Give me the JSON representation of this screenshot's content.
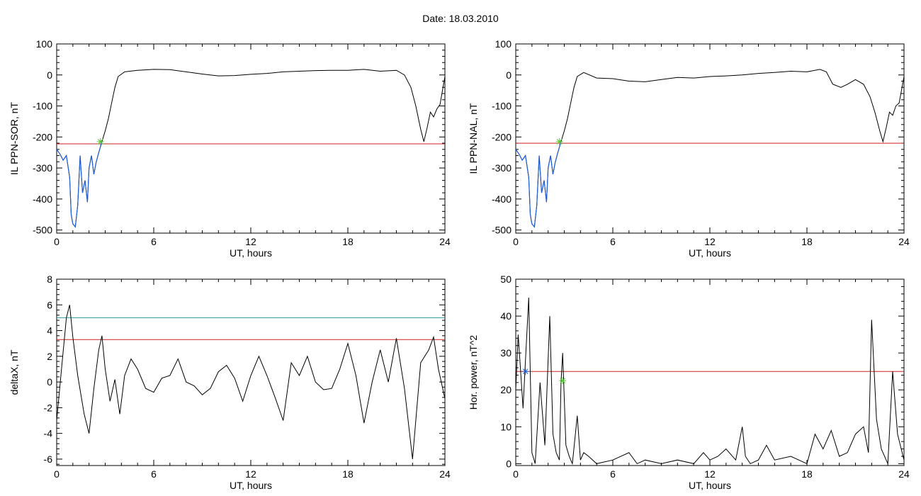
{
  "page": {
    "date_label": "Date:  18.03.2010"
  },
  "colors": {
    "axes": "#000000",
    "data_line": "#000000",
    "highlight_line": "#1f5fd6",
    "threshold_red": "#cc2222",
    "threshold_teal": "#2a9a9a",
    "marker_green": "#55cc33"
  },
  "chart_data": [
    {
      "type": "line",
      "xlabel": "UT, hours",
      "ylabel": "IL PPN-SOR, nT",
      "xlim": [
        0,
        24
      ],
      "ylim": [
        -510,
        100
      ],
      "xticks": [
        0,
        6,
        12,
        18,
        24
      ],
      "yticks": [
        -500,
        -400,
        -300,
        -200,
        -100,
        0,
        100
      ],
      "series": [
        {
          "values_x": [
            0,
            0.2,
            0.4,
            0.6,
            0.8,
            0.9,
            1.0,
            1.15,
            1.3,
            1.45,
            1.6,
            1.75,
            1.9,
            2.0,
            2.15,
            2.3,
            2.45,
            2.6,
            2.8,
            3.0,
            3.2,
            3.4,
            3.6,
            3.8,
            4.2,
            5.0,
            6.0,
            7.0,
            8.0,
            9.0,
            10.0,
            11.0,
            12.0,
            13.0,
            14.0,
            15.0,
            16.0,
            17.0,
            18.0,
            19.0,
            20.0,
            21.0,
            21.5,
            21.9,
            22.2,
            22.5,
            22.7,
            22.9,
            23.1,
            23.3,
            23.5,
            23.7,
            24.0
          ],
          "values_y": [
            -240,
            -255,
            -275,
            -260,
            -330,
            -450,
            -480,
            -490,
            -420,
            -260,
            -380,
            -340,
            -410,
            -300,
            -260,
            -320,
            -280,
            -250,
            -215,
            -180,
            -140,
            -90,
            -40,
            -5,
            10,
            15,
            18,
            17,
            10,
            3,
            -3,
            -2,
            2,
            5,
            10,
            12,
            14,
            15,
            15,
            18,
            12,
            15,
            0,
            -40,
            -100,
            -175,
            -215,
            -170,
            -120,
            -135,
            -110,
            -95,
            -5
          ]
        }
      ],
      "highlight_until_x": 2.8,
      "threshold_red_y": -222,
      "marker_x": 2.7,
      "marker_y": -215
    },
    {
      "type": "line",
      "xlabel": "UT, hours",
      "ylabel": "IL PPN-NAL, nT",
      "xlim": [
        0,
        24
      ],
      "ylim": [
        -510,
        100
      ],
      "xticks": [
        0,
        6,
        12,
        18,
        24
      ],
      "yticks": [
        -500,
        -400,
        -300,
        -200,
        -100,
        0,
        100
      ],
      "series": [
        {
          "values_x": [
            0,
            0.2,
            0.4,
            0.6,
            0.8,
            0.9,
            1.0,
            1.15,
            1.3,
            1.45,
            1.6,
            1.75,
            1.9,
            2.0,
            2.15,
            2.3,
            2.45,
            2.6,
            2.8,
            3.0,
            3.2,
            3.4,
            3.6,
            3.8,
            4.2,
            5.0,
            6.0,
            7.0,
            8.0,
            9.0,
            10.0,
            11.0,
            12.0,
            13.0,
            14.0,
            15.0,
            16.0,
            17.0,
            18.0,
            18.8,
            19.2,
            19.6,
            20.1,
            20.5,
            21.0,
            21.5,
            21.9,
            22.2,
            22.5,
            22.7,
            22.9,
            23.1,
            23.3,
            23.5,
            23.7,
            24.0
          ],
          "values_y": [
            -240,
            -255,
            -275,
            -260,
            -330,
            -450,
            -480,
            -490,
            -420,
            -260,
            -380,
            -340,
            -410,
            -300,
            -260,
            -320,
            -280,
            -250,
            -215,
            -180,
            -140,
            -90,
            -40,
            -5,
            8,
            -10,
            -12,
            -20,
            -22,
            -15,
            -8,
            -10,
            -5,
            -3,
            0,
            5,
            8,
            12,
            10,
            18,
            10,
            -30,
            -40,
            -30,
            -15,
            -30,
            -70,
            -120,
            -180,
            -215,
            -170,
            -120,
            -130,
            -100,
            -90,
            -5
          ]
        }
      ],
      "highlight_until_x": 2.8,
      "threshold_red_y": -220,
      "marker_x": 2.7,
      "marker_y": -215
    },
    {
      "type": "line",
      "xlabel": "UT, hours",
      "ylabel": "deltaX, nT",
      "xlim": [
        0,
        24
      ],
      "ylim": [
        -6.5,
        8
      ],
      "xticks": [
        0,
        6,
        12,
        18,
        24
      ],
      "yticks": [
        -6,
        -4,
        -2,
        0,
        2,
        4,
        6,
        8
      ],
      "series": [
        {
          "values_x": [
            0,
            0.3,
            0.6,
            0.8,
            1.0,
            1.3,
            1.7,
            2.0,
            2.3,
            2.6,
            2.8,
            3.0,
            3.3,
            3.6,
            3.9,
            4.2,
            4.6,
            5.0,
            5.5,
            6.0,
            6.5,
            7.0,
            7.5,
            8.0,
            8.5,
            9.0,
            9.5,
            10.0,
            10.5,
            11.0,
            11.5,
            12.0,
            12.5,
            13.0,
            13.5,
            14.0,
            14.5,
            15.0,
            15.5,
            16.0,
            16.5,
            17.0,
            17.5,
            18.0,
            18.5,
            19.0,
            19.5,
            20.0,
            20.5,
            21.0,
            21.5,
            22.0,
            22.5,
            23.0,
            23.3,
            23.6,
            24.0
          ],
          "values_y": [
            -3.0,
            1.0,
            5.0,
            6.0,
            3.5,
            0.5,
            -2.5,
            -4.0,
            -0.5,
            2.5,
            3.6,
            1.0,
            -1.5,
            0.2,
            -2.5,
            0.5,
            1.8,
            1.0,
            -0.5,
            -0.8,
            0.3,
            0.5,
            1.8,
            0.0,
            -0.3,
            -1.0,
            -0.5,
            0.8,
            1.3,
            0.3,
            -1.5,
            0.5,
            2.0,
            0.5,
            -1.2,
            -3.0,
            1.5,
            0.5,
            2.0,
            0.0,
            -0.6,
            -0.5,
            1.0,
            3.0,
            0.5,
            -3.2,
            0.0,
            2.5,
            0.0,
            3.4,
            -0.5,
            -6.0,
            1.5,
            2.5,
            3.5,
            1.0,
            -1.3
          ]
        }
      ],
      "threshold_red_y": 3.3,
      "threshold_teal_y": 5.0
    },
    {
      "type": "line",
      "xlabel": "UT, hours",
      "ylabel": "Hor. power, nT^2",
      "xlim": [
        0,
        24
      ],
      "ylim": [
        -0.5,
        50
      ],
      "xticks": [
        0,
        6,
        12,
        18,
        24
      ],
      "yticks": [
        0,
        10,
        20,
        30,
        40,
        50
      ],
      "series": [
        {
          "values_x": [
            0,
            0.15,
            0.3,
            0.45,
            0.6,
            0.8,
            1.0,
            1.2,
            1.5,
            1.8,
            2.1,
            2.3,
            2.5,
            2.7,
            2.8,
            2.9,
            3.1,
            3.3,
            3.5,
            3.8,
            4.0,
            4.2,
            4.5,
            5.0,
            6.0,
            7.0,
            7.5,
            8.0,
            9.0,
            10.0,
            11.0,
            11.6,
            12.0,
            12.5,
            13.0,
            13.6,
            14.0,
            14.2,
            14.5,
            15.0,
            15.5,
            16.0,
            17.0,
            18.0,
            18.5,
            19.0,
            19.5,
            20.0,
            20.5,
            21.0,
            21.5,
            21.8,
            22.0,
            22.3,
            22.6,
            23.0,
            23.3,
            23.6,
            24.0
          ],
          "values_y": [
            20,
            35,
            25,
            15,
            28,
            45,
            3,
            0,
            22,
            5,
            40,
            8,
            3,
            1,
            22,
            30,
            5,
            2,
            0,
            13,
            1,
            3,
            2,
            0,
            1,
            3,
            0,
            1,
            0,
            1,
            0,
            3,
            1,
            2,
            4,
            1,
            10,
            2,
            0,
            1,
            5,
            1,
            2,
            0,
            8,
            4,
            9,
            2,
            3,
            8,
            10,
            3,
            39,
            12,
            4,
            0,
            25,
            8,
            1
          ]
        }
      ],
      "threshold_red_y": 25,
      "marker_x": 2.9,
      "marker_y": 22.5,
      "blue_marker_x": 0.6,
      "blue_marker_y": 25
    }
  ]
}
